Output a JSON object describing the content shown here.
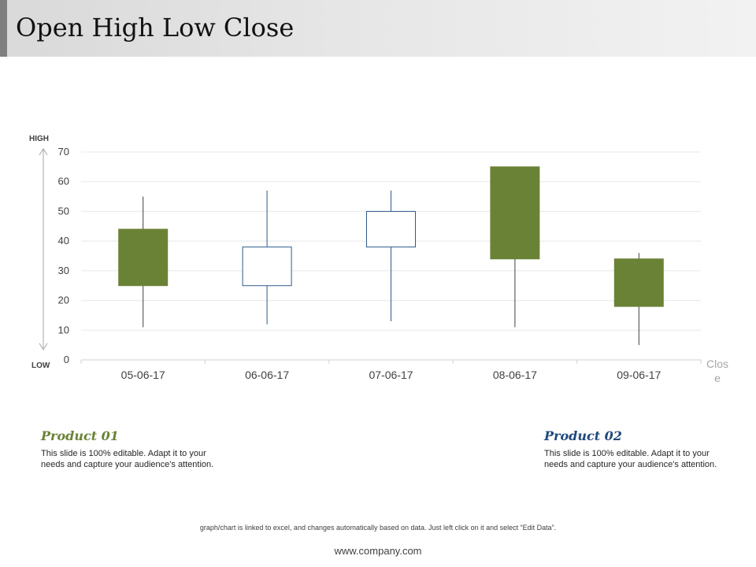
{
  "page": {
    "title": "Open High Low Close"
  },
  "colors": {
    "accent": "#6a8236",
    "up_border": "#2e5b8a",
    "product1": "#6a8236",
    "product2": "#1f497d"
  },
  "chart_data": {
    "type": "candlestick",
    "categories": [
      "05-06-17",
      "06-06-17",
      "07-06-17",
      "08-06-17",
      "09-06-17"
    ],
    "ohlc": [
      {
        "open": 44,
        "high": 55,
        "low": 11,
        "close": 25
      },
      {
        "open": 25,
        "high": 57,
        "low": 12,
        "close": 38
      },
      {
        "open": 38,
        "high": 57,
        "low": 13,
        "close": 50
      },
      {
        "open": 65,
        "high": 65,
        "low": 11,
        "close": 34
      },
      {
        "open": 34,
        "high": 36,
        "low": 5,
        "close": 18
      }
    ],
    "ylim": [
      0,
      70
    ],
    "yticks": [
      0,
      10,
      20,
      30,
      40,
      50,
      60,
      70
    ],
    "high_label": "HIGH",
    "low_label": "LOW",
    "legend": "Close",
    "grid": true
  },
  "products": [
    {
      "title": "Product 01",
      "desc": "This slide is 100% editable. Adapt it to your needs and capture your audience's attention."
    },
    {
      "title": "Product 02",
      "desc": "This slide is 100% editable. Adapt it to your needs and capture your audience's attention."
    }
  ],
  "footer": {
    "note": "graph/chart is linked to excel, and changes automatically based on data. Just left click on it and select “Edit Data”.",
    "url": "www.company.com"
  }
}
